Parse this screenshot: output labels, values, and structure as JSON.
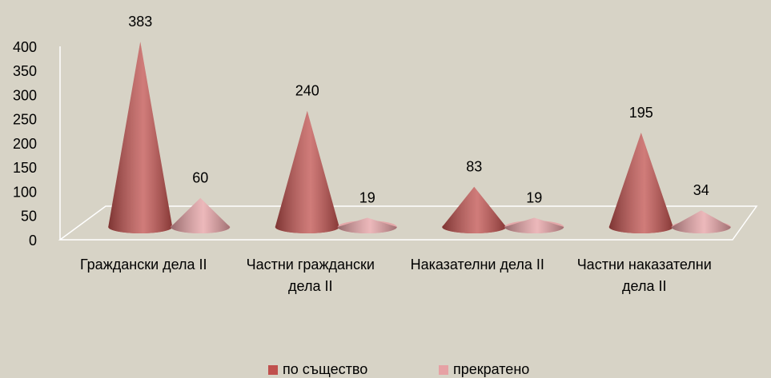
{
  "chart_data": {
    "type": "cone",
    "categories": [
      "Граждански дела II",
      "Частни граждански дела II",
      "Наказателни дела II",
      "Частни наказателни дела II"
    ],
    "series": [
      {
        "name": "по същество",
        "color": "#c0504d",
        "values": [
          383,
          240,
          83,
          195
        ]
      },
      {
        "name": "прекратено",
        "color": "#e6a1a4",
        "values": [
          60,
          19,
          19,
          34
        ]
      }
    ],
    "ylim": [
      0,
      400
    ],
    "yticks": [
      0,
      50,
      100,
      150,
      200,
      250,
      300,
      350,
      400
    ],
    "legend": "bottom"
  }
}
